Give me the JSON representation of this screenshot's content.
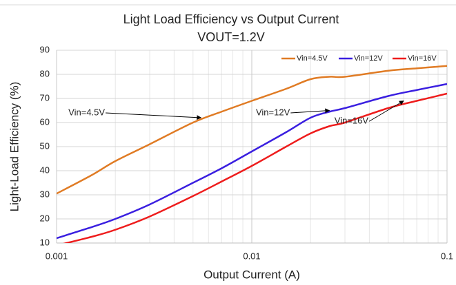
{
  "chart_data": {
    "type": "line",
    "title": "Light Load Efficiency vs Output Current",
    "subtitle": "VOUT=1.2V",
    "xlabel": "Output Current (A)",
    "ylabel": "Light-Load Efficiency (%)",
    "xscale": "log",
    "xlim": [
      0.001,
      0.1
    ],
    "xticks": [
      0.001,
      0.01,
      0.1
    ],
    "xminorticks": [
      0.002,
      0.003,
      0.004,
      0.005,
      0.006,
      0.007,
      0.008,
      0.009,
      0.02,
      0.03,
      0.04,
      0.05,
      0.06,
      0.07,
      0.08,
      0.09
    ],
    "ylim": [
      10,
      90
    ],
    "yticks": [
      10,
      20,
      30,
      40,
      50,
      60,
      70,
      80,
      90
    ],
    "grid": true,
    "legend": "upper right",
    "x": [
      0.001,
      0.0015,
      0.002,
      0.003,
      0.005,
      0.007,
      0.01,
      0.015,
      0.02,
      0.025,
      0.03,
      0.05,
      0.07,
      0.1
    ],
    "series": [
      {
        "name": "Vin=4.5V",
        "color": "#e07b24",
        "values": [
          30.5,
          38,
          44,
          51,
          60,
          64.5,
          69,
          74,
          78,
          79,
          79,
          81.5,
          82.5,
          83.5
        ]
      },
      {
        "name": "Vin=12V",
        "color": "#3a1fe0",
        "values": [
          12,
          16.5,
          20,
          26,
          35,
          41,
          48,
          56,
          62,
          64.5,
          66,
          71,
          73.5,
          76
        ]
      },
      {
        "name": "Vin=16V",
        "color": "#ee1c1c",
        "values": [
          9,
          12.5,
          15.5,
          21,
          29.5,
          35.5,
          42,
          50,
          55.5,
          58.5,
          60,
          66,
          69,
          72
        ]
      }
    ],
    "annotations": [
      {
        "text": "Vin=4.5V",
        "xy": [
          0.0055,
          62
        ],
        "xytext": [
          0.00115,
          64
        ]
      },
      {
        "text": "Vin=12V",
        "xy": [
          0.025,
          65
        ],
        "xytext": [
          0.0105,
          64
        ]
      },
      {
        "text": "Vin=16V",
        "xy": [
          0.06,
          69
        ],
        "xytext": [
          0.0265,
          60.5
        ]
      }
    ]
  }
}
